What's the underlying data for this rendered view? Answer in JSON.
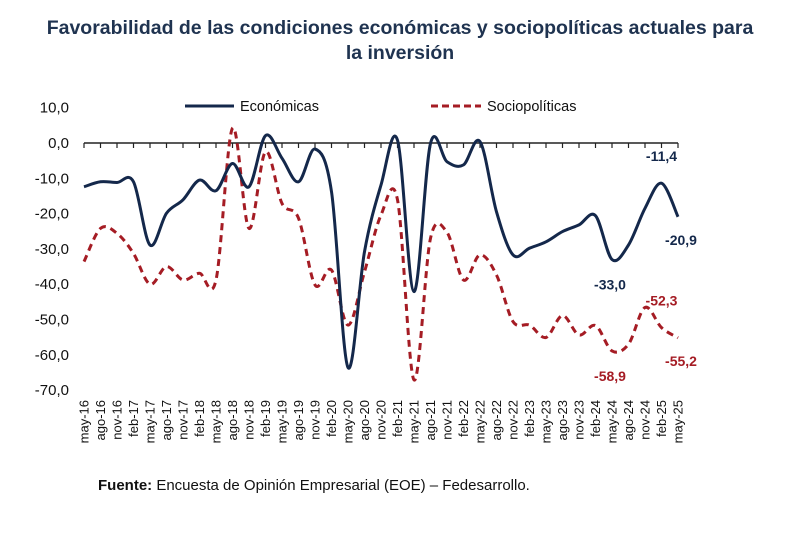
{
  "title_line1": "Favorabilidad de las condiciones económicas y sociopolíticas actuales para",
  "title_line2": "la inversión",
  "source_label": "Fuente:",
  "source_text": " Encuesta de Opinión Empresarial (EOE) – Fedesarrollo.",
  "chart_data": {
    "type": "line",
    "title": "Favorabilidad de las condiciones económicas y sociopolíticas actuales para la inversión",
    "xlabel": "",
    "ylabel": "",
    "ylim": [
      -70,
      10
    ],
    "yticks": [
      10,
      0,
      -10,
      -20,
      -30,
      -40,
      -50,
      -60,
      -70
    ],
    "ytick_labels": [
      "10,0",
      "0,0",
      "-10,0",
      "-20,0",
      "-30,0",
      "-40,0",
      "-50,0",
      "-60,0",
      "-70,0"
    ],
    "grid": false,
    "legend_position": "top",
    "categories": [
      "may-16",
      "ago-16",
      "nov-16",
      "feb-17",
      "may-17",
      "ago-17",
      "nov-17",
      "feb-18",
      "may-18",
      "ago-18",
      "nov-18",
      "feb-19",
      "may-19",
      "ago-19",
      "nov-19",
      "feb-20",
      "may-20",
      "ago-20",
      "nov-20",
      "feb-21",
      "may-21",
      "ago-21",
      "nov-21",
      "feb-22",
      "may-22",
      "ago-22",
      "nov-22",
      "feb-23",
      "may-23",
      "ago-23",
      "nov-23",
      "feb-24",
      "may-24",
      "ago-24",
      "nov-24",
      "feb-25",
      "may-25"
    ],
    "series": [
      {
        "name": "Económicas",
        "color": "#14284b",
        "style": "solid",
        "values": [
          -12.4,
          -11.0,
          -11.2,
          -11.0,
          -28.9,
          -19.9,
          -16.1,
          -10.5,
          -13.5,
          -5.8,
          -12.4,
          2.1,
          -4.3,
          -11.0,
          -1.7,
          -13.8,
          -63.6,
          -30.8,
          -11.9,
          0.8,
          -42.1,
          -0.1,
          -5.3,
          -6.2,
          0.4,
          -19.5,
          -31.7,
          -29.8,
          -28.0,
          -25.1,
          -23.2,
          -20.6,
          -33.0,
          -28.9,
          -18.5,
          -11.4,
          -20.9
        ]
      },
      {
        "name": "Sociopolíticas",
        "color": "#a51c24",
        "style": "dashed",
        "values": [
          -33.6,
          -24.2,
          -25.6,
          -31.3,
          -40.0,
          -35.0,
          -38.8,
          -36.9,
          -38.8,
          4.2,
          -24.2,
          -2.5,
          -17.1,
          -21.3,
          -40.2,
          -36.0,
          -51.6,
          -36.5,
          -20.4,
          -16.1,
          -67.1,
          -27.0,
          -25.3,
          -38.8,
          -31.7,
          -37.4,
          -50.6,
          -51.6,
          -55.1,
          -48.9,
          -54.4,
          -51.7,
          -58.9,
          -57.0,
          -46.6,
          -52.3,
          -55.2
        ]
      }
    ],
    "annotations": [
      {
        "series": "Económicas",
        "category": "feb-25",
        "text": "-11,4",
        "color": "#14284b",
        "position": "above"
      },
      {
        "series": "Económicas",
        "category": "may-25",
        "text": "-20,9",
        "color": "#14284b",
        "position": "below-right"
      },
      {
        "series": "Económicas",
        "category": "may-24",
        "text": "-33,0",
        "color": "#14284b",
        "position": "below"
      },
      {
        "series": "Sociopolíticas",
        "category": "feb-25",
        "text": "-52,3",
        "color": "#a51c24",
        "position": "above"
      },
      {
        "series": "Sociopolíticas",
        "category": "may-25",
        "text": "-55,2",
        "color": "#a51c24",
        "position": "below-right"
      },
      {
        "series": "Sociopolíticas",
        "category": "may-24",
        "text": "-58,9",
        "color": "#a51c24",
        "position": "below"
      }
    ]
  }
}
